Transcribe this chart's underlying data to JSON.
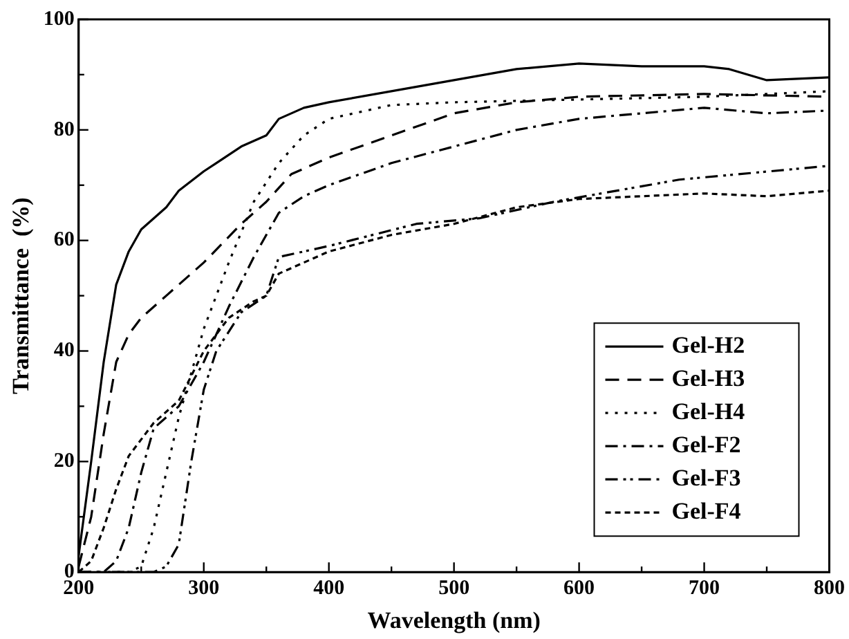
{
  "chart_data": {
    "type": "line",
    "xlabel": "Wavelength (nm)",
    "ylabel": "Transmittance  (%)",
    "xlim": [
      200,
      800
    ],
    "ylim": [
      0,
      100
    ],
    "xticks": [
      200,
      {
        "value": 250,
        "label": null
      },
      300,
      {
        "value": 350,
        "label": null
      },
      400,
      {
        "value": 450,
        "label": null
      },
      500,
      {
        "value": 550,
        "label": null
      },
      600,
      {
        "value": 650,
        "label": null
      },
      700,
      {
        "value": 750,
        "label": null
      },
      800
    ],
    "yticks": [
      0,
      {
        "value": 10,
        "label": null
      },
      20,
      {
        "value": 30,
        "label": null
      },
      40,
      {
        "value": 50,
        "label": null
      },
      60,
      {
        "value": 70,
        "label": null
      },
      80,
      {
        "value": 90,
        "label": null
      },
      100
    ],
    "grid": false,
    "legend": "bottom right",
    "marker": "none",
    "series": [
      {
        "name": "Gel-H2",
        "color": "#000000",
        "line_style": "solid",
        "x": [
          200,
          210,
          220,
          230,
          240,
          250,
          260,
          270,
          280,
          300,
          310,
          330,
          350,
          360,
          380,
          400,
          450,
          500,
          550,
          600,
          650,
          700,
          720,
          750,
          800
        ],
        "values": [
          3,
          20,
          38,
          52,
          58,
          62,
          64,
          66,
          69,
          72.5,
          74,
          77,
          79,
          82,
          84,
          85,
          87,
          89,
          91,
          92,
          91.5,
          91.5,
          91,
          89,
          89.5
        ]
      },
      {
        "name": "Gel-H3",
        "color": "#000000",
        "line_style": "dashed",
        "x": [
          200,
          210,
          220,
          230,
          240,
          250,
          270,
          300,
          330,
          350,
          370,
          400,
          450,
          500,
          550,
          600,
          700,
          800
        ],
        "values": [
          1,
          10,
          25,
          38,
          43,
          46,
          50,
          56,
          63,
          67,
          72,
          75,
          79,
          83,
          85,
          86,
          86.5,
          86
        ]
      },
      {
        "name": "Gel-H4",
        "color": "#000000",
        "line_style": "dotted",
        "x": [
          200,
          240,
          250,
          260,
          270,
          280,
          290,
          300,
          320,
          340,
          360,
          380,
          400,
          450,
          500,
          600,
          700,
          800
        ],
        "values": [
          0,
          0,
          1,
          8,
          18,
          28,
          36,
          44,
          56,
          67,
          74,
          79,
          82,
          84.5,
          85,
          85.5,
          86,
          87
        ]
      },
      {
        "name": "Gel-F2",
        "color": "#000000",
        "line_style": "dashdot",
        "x": [
          200,
          220,
          230,
          240,
          250,
          260,
          270,
          280,
          300,
          320,
          340,
          360,
          380,
          400,
          450,
          500,
          550,
          600,
          650,
          700,
          750,
          800
        ],
        "values": [
          0,
          0,
          2,
          8,
          18,
          26,
          28,
          30,
          38,
          48,
          57,
          65,
          68,
          70,
          74,
          77,
          80,
          82,
          83,
          84,
          83,
          83.5
        ]
      },
      {
        "name": "Gel-F3",
        "color": "#000000",
        "line_style": "dashdotdot",
        "x": [
          200,
          260,
          270,
          280,
          290,
          300,
          310,
          330,
          350,
          360,
          400,
          470,
          520,
          580,
          680,
          800
        ],
        "values": [
          0,
          0,
          1,
          5,
          20,
          33,
          40,
          47,
          50,
          57,
          59,
          63,
          64,
          67,
          71,
          73.5
        ]
      },
      {
        "name": "Gel-F4",
        "color": "#000000",
        "line_style": "shortdash",
        "x": [
          200,
          210,
          220,
          230,
          240,
          250,
          260,
          280,
          300,
          320,
          340,
          350,
          360,
          380,
          400,
          450,
          500,
          550,
          600,
          700,
          750,
          800
        ],
        "values": [
          0,
          2,
          8,
          15,
          21,
          24,
          27,
          31,
          40,
          46,
          49,
          50,
          54,
          56,
          58,
          61,
          63,
          66,
          67.5,
          68.5,
          68,
          69
        ]
      }
    ]
  }
}
